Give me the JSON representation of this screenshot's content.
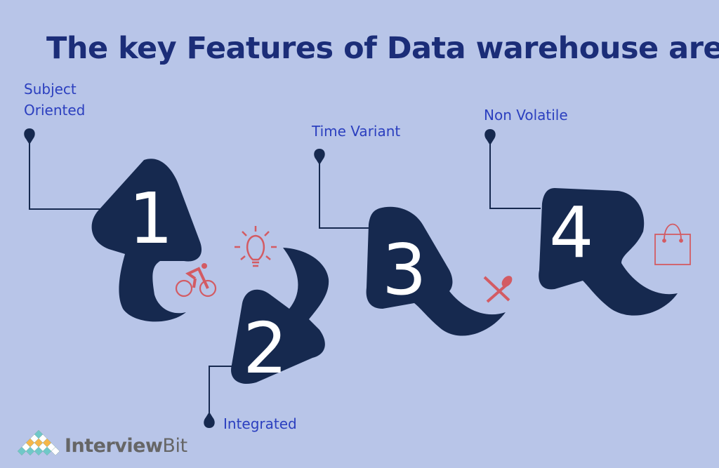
{
  "title": "The key Features of Data warehouse are:",
  "features": [
    {
      "number": "1",
      "label_line1": "Subject",
      "label_line2": "Oriented",
      "icon": "bicycle-icon"
    },
    {
      "number": "2",
      "label": "Integrated",
      "icon": "lightbulb-icon"
    },
    {
      "number": "3",
      "label": "Time Variant",
      "icon": "fork-knife-icon"
    },
    {
      "number": "4",
      "label": "Non Volatile",
      "icon": "shopping-bag-icon"
    }
  ],
  "logo": {
    "part1": "Interview",
    "part2": "Bit"
  },
  "colors": {
    "background": "#b8c5e8",
    "shape": "#16294f",
    "title": "#1b2d78",
    "label": "#2b3fbf",
    "icon": "#d35b63"
  }
}
